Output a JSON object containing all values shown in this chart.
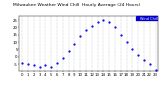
{
  "title": "Milwaukee Weather Wind Chill",
  "subtitle": "Hourly Average (24 Hours)",
  "x": [
    0,
    1,
    2,
    3,
    4,
    5,
    6,
    7,
    8,
    9,
    10,
    11,
    12,
    13,
    14,
    15,
    16,
    17,
    18,
    19,
    20,
    21,
    22,
    23
  ],
  "y": [
    -4,
    -5,
    -6,
    -7,
    -6,
    -7,
    -4,
    -1,
    4,
    9,
    14,
    18,
    21,
    24,
    25,
    24,
    20,
    15,
    10,
    5,
    1,
    -2,
    -5,
    -9
  ],
  "ylim": [
    -10,
    28
  ],
  "xlim": [
    -0.5,
    23.5
  ],
  "dot_color": "#0000ee",
  "legend_bg": "#0000cc",
  "legend_text_color": "#ffffff",
  "background_color": "#ffffff",
  "plot_bg": "#ffffff",
  "grid_color": "#999999",
  "tick_label_color": "#000000",
  "title_fontsize": 3.2,
  "tick_fontsize": 2.8,
  "legend_fontsize": 2.5,
  "ytick_values": [
    25,
    20,
    15,
    10,
    5,
    0,
    -5
  ],
  "ytick_labels": [
    "25",
    "20",
    "15",
    "10",
    "5",
    "0",
    "-5"
  ],
  "xtick_values": [
    0,
    1,
    2,
    3,
    4,
    5,
    6,
    7,
    8,
    9,
    10,
    11,
    12,
    13,
    14,
    15,
    16,
    17,
    18,
    19,
    20,
    21,
    22,
    23
  ],
  "xtick_labels": [
    "0",
    "1",
    "2",
    "3",
    "4",
    "5",
    "6",
    "7",
    "8",
    "9",
    "10",
    "11",
    "12",
    "13",
    "14",
    "15",
    "16",
    "17",
    "18",
    "19",
    "20",
    "21",
    "22",
    "23"
  ],
  "legend_label": "Wind Chill",
  "marker_size": 1.2
}
